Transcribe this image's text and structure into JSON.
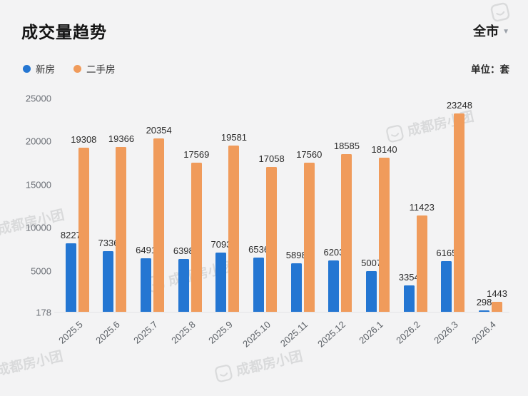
{
  "header": {
    "title": "成交量趋势",
    "region_selector": "全市",
    "unit_label": "单位：套"
  },
  "legend": [
    {
      "label": "新房",
      "color": "#2476d2"
    },
    {
      "label": "二手房",
      "color": "#f09b5b"
    }
  ],
  "watermark": {
    "text": "成都房小团"
  },
  "chart_data": {
    "type": "bar",
    "title": "成交量趋势",
    "unit": "套",
    "categories": [
      "2025.5",
      "2025.6",
      "2025.7",
      "2025.8",
      "2025.9",
      "2025.10",
      "2025.11",
      "2025.12",
      "2026.1",
      "2026.2",
      "2026.3",
      "2026.4"
    ],
    "series": [
      {
        "name": "新房",
        "color": "#2476d2",
        "values": [
          8227,
          7336,
          6491,
          6398,
          7093,
          6536,
          5898,
          6203,
          5007,
          3354,
          6165,
          298
        ]
      },
      {
        "name": "二手房",
        "color": "#f09b5b",
        "values": [
          19308,
          19366,
          20354,
          17569,
          19581,
          17058,
          17560,
          18585,
          18140,
          11423,
          23248,
          1443
        ]
      }
    ],
    "y_ticks": [
      25000,
      20000,
      15000,
      10000,
      5000,
      178
    ],
    "ylim": [
      178,
      25000
    ],
    "grid": false,
    "legend_position": "top-left"
  }
}
